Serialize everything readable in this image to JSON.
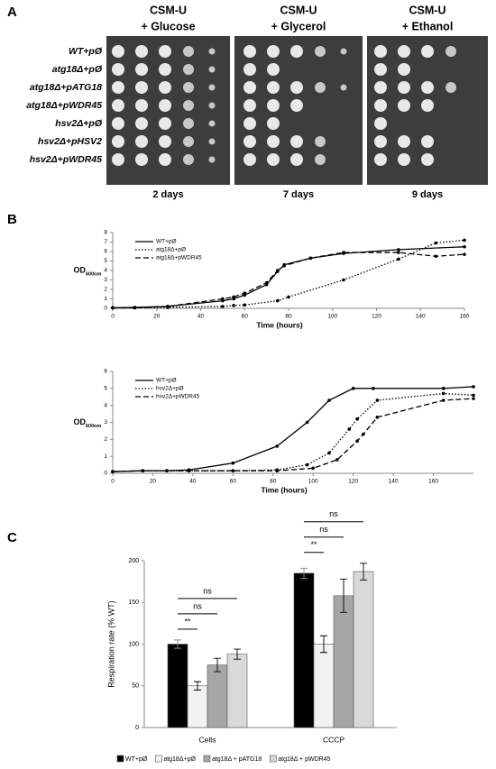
{
  "panel_labels": [
    "A",
    "B",
    "C"
  ],
  "spot_assay": {
    "columns": [
      {
        "medium": "CSM-U",
        "carbon": "+ Glucose",
        "time": "2 days"
      },
      {
        "medium": "CSM-U",
        "carbon": "+ Glycerol",
        "time": "7 days"
      },
      {
        "medium": "CSM-U",
        "carbon": "+ Ethanol",
        "time": "9 days"
      }
    ],
    "strains": [
      "WT+pØ",
      "atg18Δ+pØ",
      "atg18Δ+pATG18",
      "atg18Δ+pWDR45",
      "hsv2Δ+pØ",
      "hsv2Δ+pHSV2",
      "hsv2Δ+pWDR45"
    ]
  },
  "chart_data": [
    {
      "type": "line",
      "xlabel": "Time (hours)",
      "ylabel": "OD",
      "ylabel_subscript": "600nm",
      "xlim": [
        0,
        160
      ],
      "ylim": [
        0,
        8
      ],
      "xticks": [
        0,
        20,
        40,
        60,
        80,
        100,
        120,
        140,
        160
      ],
      "yticks": [
        0,
        1,
        2,
        3,
        4,
        5,
        6,
        7,
        8
      ],
      "legend": "upper left",
      "series": [
        {
          "name": "WT+pØ",
          "color": "#000000",
          "style": "solid",
          "x": [
            0,
            10,
            25,
            50,
            55,
            60,
            70,
            75,
            78,
            90,
            105,
            130,
            160
          ],
          "values": [
            0.05,
            0.1,
            0.2,
            0.8,
            1.0,
            1.4,
            2.5,
            3.9,
            4.6,
            5.3,
            5.8,
            6.2,
            6.5
          ]
        },
        {
          "name": "atg18Δ+pØ",
          "color": "#000000",
          "style": "dotted",
          "x": [
            0,
            10,
            25,
            50,
            55,
            60,
            75,
            80,
            105,
            130,
            147,
            160
          ],
          "values": [
            0.05,
            0.05,
            0.1,
            0.2,
            0.3,
            0.35,
            0.8,
            1.2,
            3.0,
            5.2,
            6.9,
            7.2
          ]
        },
        {
          "name": "atg18Δ+pWDR45",
          "color": "#000000",
          "style": "dashed",
          "x": [
            0,
            10,
            25,
            50,
            55,
            60,
            70,
            75,
            78,
            90,
            105,
            130,
            147,
            160
          ],
          "values": [
            0.05,
            0.05,
            0.2,
            1.0,
            1.2,
            1.6,
            2.7,
            4.0,
            4.5,
            5.3,
            5.9,
            5.9,
            5.5,
            5.7
          ]
        }
      ]
    },
    {
      "type": "line",
      "xlabel": "Time (hours)",
      "ylabel": "OD",
      "ylabel_subscript": "600nm",
      "xlim": [
        0,
        180
      ],
      "ylim": [
        0,
        6
      ],
      "xticks": [
        0,
        20,
        40,
        60,
        80,
        100,
        120,
        140,
        160
      ],
      "yticks": [
        0,
        1,
        2,
        3,
        4,
        5,
        6
      ],
      "legend": "upper left",
      "series": [
        {
          "name": "WT+pØ",
          "color": "#000000",
          "style": "solid",
          "x": [
            0,
            15,
            27,
            38,
            60,
            82,
            97,
            108,
            120,
            130,
            165,
            180
          ],
          "values": [
            0.1,
            0.15,
            0.15,
            0.2,
            0.6,
            1.6,
            3.0,
            4.3,
            5.0,
            5.0,
            5.0,
            5.1
          ]
        },
        {
          "name": "hsv2Δ+pØ",
          "color": "#000000",
          "style": "dotted",
          "x": [
            0,
            15,
            27,
            38,
            60,
            82,
            97,
            108,
            118,
            122,
            132,
            165,
            180
          ],
          "values": [
            0.1,
            0.15,
            0.15,
            0.15,
            0.15,
            0.2,
            0.5,
            1.2,
            2.6,
            3.2,
            4.3,
            4.7,
            4.6
          ]
        },
        {
          "name": "hsv2Δ+pWDR45",
          "color": "#000000",
          "style": "dashed",
          "x": [
            0,
            15,
            27,
            38,
            60,
            82,
            100,
            112,
            122,
            125,
            132,
            165,
            180
          ],
          "values": [
            0.1,
            0.15,
            0.15,
            0.15,
            0.15,
            0.15,
            0.3,
            0.8,
            1.9,
            2.3,
            3.3,
            4.3,
            4.4
          ]
        }
      ]
    },
    {
      "type": "bar",
      "ylabel": "Respiration rate (% WT)",
      "categories": [
        "Cells",
        "CCCP"
      ],
      "ylim": [
        0,
        200
      ],
      "yticks": [
        0,
        50,
        100,
        150,
        200
      ],
      "legend": "bottom",
      "series": [
        {
          "name": "WT+pØ",
          "color": "#000000",
          "values": [
            100,
            185
          ],
          "errors": [
            5,
            6
          ]
        },
        {
          "name": "atg18Δ+pØ",
          "color": "#f2f2f2",
          "values": [
            50,
            100
          ],
          "errors": [
            5,
            10
          ]
        },
        {
          "name": "atg18Δ + pATG18",
          "color": "#a6a6a6",
          "values": [
            75,
            158
          ],
          "errors": [
            8,
            20
          ]
        },
        {
          "name": "atg18Δ + pWDR45",
          "color": "#d9d9d9",
          "values": [
            88,
            187
          ],
          "errors": [
            6,
            10
          ]
        }
      ],
      "significance": [
        [
          "**",
          "ns",
          "ns"
        ],
        [
          "**",
          "ns",
          "ns"
        ]
      ]
    }
  ]
}
